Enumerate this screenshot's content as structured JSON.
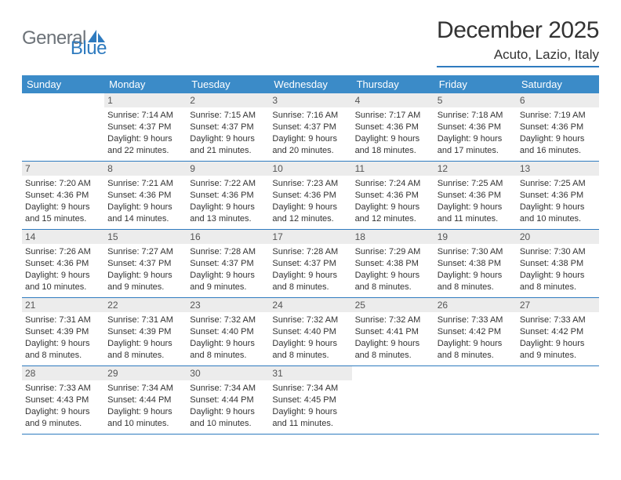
{
  "logo": {
    "word1": "General",
    "word2": "Blue"
  },
  "title": "December 2025",
  "location": "Acuto, Lazio, Italy",
  "dayNames": [
    "Sunday",
    "Monday",
    "Tuesday",
    "Wednesday",
    "Thursday",
    "Friday",
    "Saturday"
  ],
  "colors": {
    "accent": "#2f7bbf",
    "headerBar": "#3b8bc8",
    "dayNumBg": "#ececec",
    "text": "#333333",
    "logoGray": "#6c7278"
  },
  "weeks": [
    [
      null,
      {
        "n": "1",
        "sr": "7:14 AM",
        "ss": "4:37 PM",
        "dl": "9 hours and 22 minutes."
      },
      {
        "n": "2",
        "sr": "7:15 AM",
        "ss": "4:37 PM",
        "dl": "9 hours and 21 minutes."
      },
      {
        "n": "3",
        "sr": "7:16 AM",
        "ss": "4:37 PM",
        "dl": "9 hours and 20 minutes."
      },
      {
        "n": "4",
        "sr": "7:17 AM",
        "ss": "4:36 PM",
        "dl": "9 hours and 18 minutes."
      },
      {
        "n": "5",
        "sr": "7:18 AM",
        "ss": "4:36 PM",
        "dl": "9 hours and 17 minutes."
      },
      {
        "n": "6",
        "sr": "7:19 AM",
        "ss": "4:36 PM",
        "dl": "9 hours and 16 minutes."
      }
    ],
    [
      {
        "n": "7",
        "sr": "7:20 AM",
        "ss": "4:36 PM",
        "dl": "9 hours and 15 minutes."
      },
      {
        "n": "8",
        "sr": "7:21 AM",
        "ss": "4:36 PM",
        "dl": "9 hours and 14 minutes."
      },
      {
        "n": "9",
        "sr": "7:22 AM",
        "ss": "4:36 PM",
        "dl": "9 hours and 13 minutes."
      },
      {
        "n": "10",
        "sr": "7:23 AM",
        "ss": "4:36 PM",
        "dl": "9 hours and 12 minutes."
      },
      {
        "n": "11",
        "sr": "7:24 AM",
        "ss": "4:36 PM",
        "dl": "9 hours and 12 minutes."
      },
      {
        "n": "12",
        "sr": "7:25 AM",
        "ss": "4:36 PM",
        "dl": "9 hours and 11 minutes."
      },
      {
        "n": "13",
        "sr": "7:25 AM",
        "ss": "4:36 PM",
        "dl": "9 hours and 10 minutes."
      }
    ],
    [
      {
        "n": "14",
        "sr": "7:26 AM",
        "ss": "4:36 PM",
        "dl": "9 hours and 10 minutes."
      },
      {
        "n": "15",
        "sr": "7:27 AM",
        "ss": "4:37 PM",
        "dl": "9 hours and 9 minutes."
      },
      {
        "n": "16",
        "sr": "7:28 AM",
        "ss": "4:37 PM",
        "dl": "9 hours and 9 minutes."
      },
      {
        "n": "17",
        "sr": "7:28 AM",
        "ss": "4:37 PM",
        "dl": "9 hours and 8 minutes."
      },
      {
        "n": "18",
        "sr": "7:29 AM",
        "ss": "4:38 PM",
        "dl": "9 hours and 8 minutes."
      },
      {
        "n": "19",
        "sr": "7:30 AM",
        "ss": "4:38 PM",
        "dl": "9 hours and 8 minutes."
      },
      {
        "n": "20",
        "sr": "7:30 AM",
        "ss": "4:38 PM",
        "dl": "9 hours and 8 minutes."
      }
    ],
    [
      {
        "n": "21",
        "sr": "7:31 AM",
        "ss": "4:39 PM",
        "dl": "9 hours and 8 minutes."
      },
      {
        "n": "22",
        "sr": "7:31 AM",
        "ss": "4:39 PM",
        "dl": "9 hours and 8 minutes."
      },
      {
        "n": "23",
        "sr": "7:32 AM",
        "ss": "4:40 PM",
        "dl": "9 hours and 8 minutes."
      },
      {
        "n": "24",
        "sr": "7:32 AM",
        "ss": "4:40 PM",
        "dl": "9 hours and 8 minutes."
      },
      {
        "n": "25",
        "sr": "7:32 AM",
        "ss": "4:41 PM",
        "dl": "9 hours and 8 minutes."
      },
      {
        "n": "26",
        "sr": "7:33 AM",
        "ss": "4:42 PM",
        "dl": "9 hours and 8 minutes."
      },
      {
        "n": "27",
        "sr": "7:33 AM",
        "ss": "4:42 PM",
        "dl": "9 hours and 9 minutes."
      }
    ],
    [
      {
        "n": "28",
        "sr": "7:33 AM",
        "ss": "4:43 PM",
        "dl": "9 hours and 9 minutes."
      },
      {
        "n": "29",
        "sr": "7:34 AM",
        "ss": "4:44 PM",
        "dl": "9 hours and 10 minutes."
      },
      {
        "n": "30",
        "sr": "7:34 AM",
        "ss": "4:44 PM",
        "dl": "9 hours and 10 minutes."
      },
      {
        "n": "31",
        "sr": "7:34 AM",
        "ss": "4:45 PM",
        "dl": "9 hours and 11 minutes."
      },
      null,
      null,
      null
    ]
  ],
  "labels": {
    "sunrise": "Sunrise:",
    "sunset": "Sunset:",
    "daylight": "Daylight:"
  }
}
